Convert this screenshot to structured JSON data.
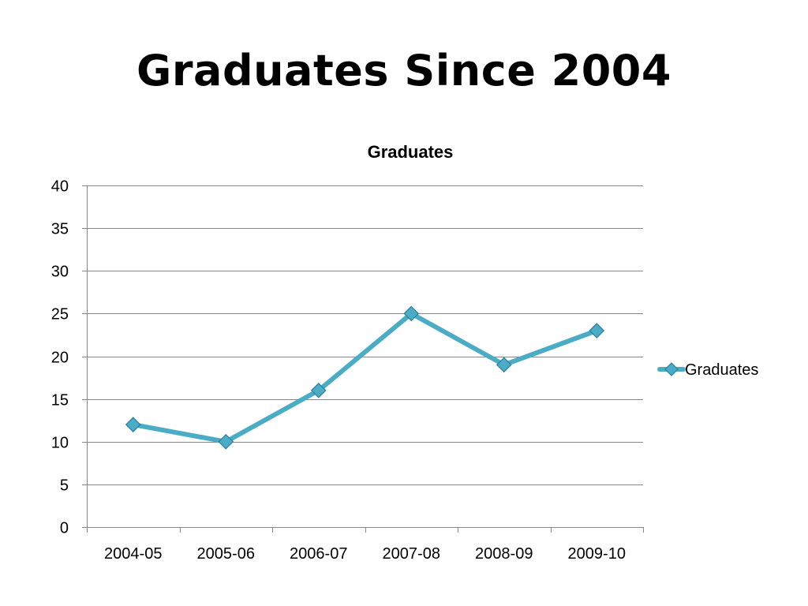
{
  "slide": {
    "title": "Graduates Since 2004"
  },
  "colors": {
    "series": "#4bacc6",
    "marker_fill": "#4bacc6",
    "marker_stroke": "#2a7f99",
    "grid": "#868686",
    "axis": "#868686"
  },
  "icons": {
    "legend": "diamond-marker-icon"
  },
  "chart_data": {
    "type": "line",
    "title": "Graduates",
    "categories": [
      "2004-05",
      "2005-06",
      "2006-07",
      "2007-08",
      "2008-09",
      "2009-10"
    ],
    "series": [
      {
        "name": "Graduates",
        "values": [
          12,
          10,
          16,
          25,
          19,
          23
        ]
      }
    ],
    "ylim": [
      0,
      40
    ],
    "yticks": [
      0,
      5,
      10,
      15,
      20,
      25,
      30,
      35,
      40
    ],
    "grid": true,
    "legend": "right",
    "marker": "diamond"
  }
}
